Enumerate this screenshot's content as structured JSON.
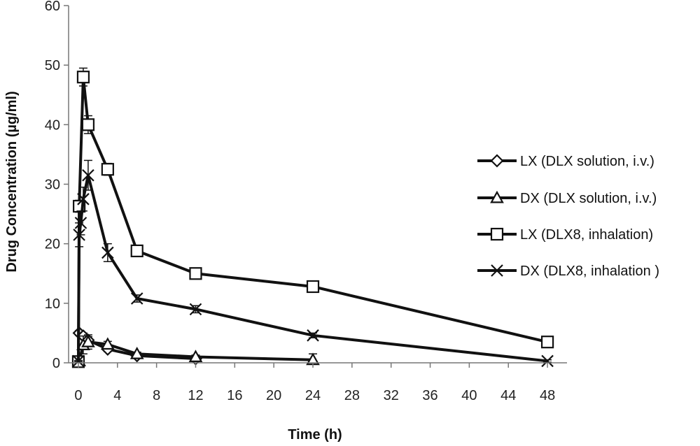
{
  "chart_data": {
    "type": "line",
    "title": "",
    "xlabel": "Time (h)",
    "ylabel": "Drug Concentration (µg/ml)",
    "xlim": [
      -1,
      50
    ],
    "ylim": [
      0,
      60
    ],
    "x_ticks": [
      0,
      4,
      8,
      12,
      16,
      20,
      24,
      28,
      32,
      36,
      40,
      44,
      48
    ],
    "y_ticks": [
      0,
      10,
      20,
      30,
      40,
      50,
      60
    ],
    "x_tick_labels": [
      "0",
      "4",
      "8",
      "12",
      "16",
      "20",
      "24",
      "28",
      "32",
      "36",
      "40",
      "44",
      "48"
    ],
    "y_tick_labels": [
      "0",
      "10",
      "20",
      "30",
      "40",
      "50",
      "60"
    ],
    "grid": false,
    "legend_position": "right",
    "series": [
      {
        "name": "LX (DLX solution,  i.v.)",
        "marker": "diamond",
        "x": [
          0.083,
          0.5,
          1,
          3,
          6,
          12
        ],
        "y": [
          5.0,
          4.5,
          3.8,
          2.3,
          1.2,
          0.7
        ],
        "error": [
          0.4,
          0.5,
          0.6,
          0.4,
          0.3,
          0.2
        ]
      },
      {
        "name": "DX (DLX solution, i.v.)",
        "marker": "triangle",
        "x": [
          0.083,
          0.5,
          1,
          3,
          6,
          12,
          24
        ],
        "y": [
          0.3,
          3.0,
          3.5,
          3.1,
          1.5,
          1.0,
          0.5
        ],
        "error": [
          0.2,
          1.5,
          1.2,
          0.5,
          0.3,
          0.3,
          1.0
        ]
      },
      {
        "name": "LX (DLX8, inhalation)",
        "marker": "square",
        "x": [
          0,
          0.083,
          0.5,
          1,
          3,
          6,
          12,
          24,
          48
        ],
        "y": [
          0.2,
          26.3,
          48.0,
          40.0,
          32.5,
          18.8,
          15.0,
          12.8,
          3.5
        ],
        "error": [
          0.1,
          1.0,
          1.5,
          1.5,
          1.0,
          0.8,
          0.8,
          0.8,
          0.5
        ]
      },
      {
        "name": "DX (DLX8, inhalation )",
        "marker": "cross",
        "x": [
          0,
          0.083,
          0.25,
          0.5,
          1,
          3,
          6,
          12,
          24,
          48
        ],
        "y": [
          0.3,
          21.5,
          23.5,
          27.5,
          31.5,
          18.5,
          10.8,
          9.0,
          4.6,
          0.3
        ],
        "error": [
          0.1,
          2.0,
          2.0,
          2.0,
          2.5,
          1.5,
          0.6,
          0.6,
          0.4,
          0.2
        ]
      }
    ]
  }
}
